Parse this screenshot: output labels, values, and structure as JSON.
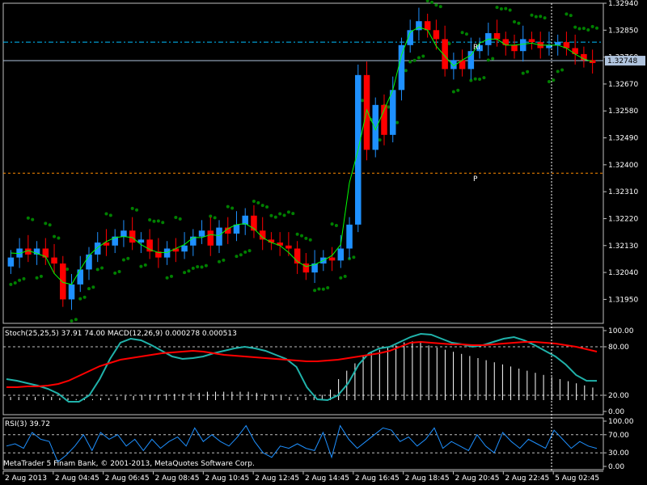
{
  "colors": {
    "background": "#000000",
    "frame": "#c0c0c0",
    "text": "#ffffff",
    "bull_candle": "#1e90ff",
    "bear_candle": "#ff0000",
    "ma_line": "#00ff00",
    "psar": "#008000",
    "stoch_main": "#20b2aa",
    "stoch_signal": "#ff0000",
    "macd_hist": "#ffffff",
    "macd_signal": "#ff0000",
    "rsi": "#1e90ff",
    "pivot": "#ff8c00",
    "rl": "#00bfff",
    "price_line": "#b0c4de",
    "vline": "#ffffff"
  },
  "chart_data": [
    {
      "type": "candlestick",
      "ylim": [
        1.3187,
        1.3294
      ],
      "y_ticks": [
        "1.32940",
        "1.32850",
        "1.32760",
        "1.32670",
        "1.32580",
        "1.32490",
        "1.32400",
        "1.32310",
        "1.32220",
        "1.32130",
        "1.32040",
        "1.31950"
      ],
      "current_price": "1.32748",
      "levels": [
        {
          "label": "Rl",
          "value": 1.3281
        },
        {
          "label": "",
          "value": 1.32748
        },
        {
          "label": "P",
          "value": 1.32372
        }
      ],
      "annotations": [
        "Rl",
        "P"
      ],
      "candles_close": [
        1.3209,
        1.3212,
        1.321,
        1.3212,
        1.3209,
        1.3207,
        1.3195,
        1.32,
        1.3205,
        1.321,
        1.3214,
        1.3213,
        1.3216,
        1.3218,
        1.3214,
        1.3215,
        1.3211,
        1.3209,
        1.3212,
        1.3211,
        1.3213,
        1.3216,
        1.3218,
        1.3213,
        1.3219,
        1.3217,
        1.322,
        1.3223,
        1.3218,
        1.3215,
        1.3214,
        1.3213,
        1.3212,
        1.3207,
        1.3204,
        1.3207,
        1.3209,
        1.3208,
        1.3212,
        1.322,
        1.327,
        1.3245,
        1.326,
        1.325,
        1.3265,
        1.328,
        1.3285,
        1.3288,
        1.3285,
        1.3282,
        1.3272,
        1.3275,
        1.3272,
        1.3278,
        1.328,
        1.3284,
        1.3282,
        1.328,
        1.3278,
        1.3282,
        1.3281,
        1.3279,
        1.328,
        1.3281,
        1.3279,
        1.3277,
        1.3275,
        1.3274
      ],
      "psar_lower_fraction": 0.16,
      "psar_upper_fraction": 0.98
    },
    {
      "type": "line",
      "title": "Stoch(25,25,5) 37.91 74.00 MACD(12,26,9) 0.000278 0.000513",
      "ylim": [
        0,
        100
      ],
      "y_ticks": [
        "100.00",
        "80.00",
        "20.00",
        "0.00"
      ],
      "series": [
        {
          "name": "Stoch main",
          "values": [
            40,
            38,
            35,
            32,
            28,
            22,
            12,
            12,
            20,
            40,
            65,
            85,
            90,
            88,
            82,
            75,
            68,
            65,
            66,
            68,
            72,
            75,
            78,
            80,
            78,
            75,
            70,
            65,
            55,
            30,
            15,
            14,
            20,
            35,
            58,
            72,
            78,
            80,
            86,
            92,
            96,
            95,
            90,
            85,
            83,
            80,
            82,
            86,
            90,
            92,
            88,
            82,
            75,
            68,
            58,
            45,
            38,
            37.91
          ]
        },
        {
          "name": "Stoch signal",
          "values": [
            30,
            30,
            31,
            31,
            32,
            34,
            38,
            44,
            50,
            56,
            60,
            64,
            66,
            68,
            70,
            72,
            73,
            74,
            75,
            74,
            72,
            70,
            69,
            68,
            67,
            66,
            65,
            64,
            63,
            62,
            62,
            63,
            64,
            66,
            68,
            70,
            72,
            75,
            80,
            85,
            86,
            85,
            84,
            83,
            83,
            82,
            82,
            83,
            84,
            85,
            86,
            86,
            85,
            84,
            82,
            80,
            77,
            74.0
          ]
        }
      ],
      "macd_hist": [
        3,
        3,
        3,
        3,
        3,
        3,
        2,
        2,
        1,
        1,
        1,
        2,
        2,
        3,
        4,
        4,
        5,
        5,
        5,
        6,
        6,
        6,
        7,
        7,
        8,
        8,
        8,
        8,
        8,
        8,
        7,
        6,
        5,
        4,
        3,
        3,
        3,
        3,
        5,
        10,
        20,
        28,
        35,
        42,
        45,
        48,
        50,
        52,
        55,
        56,
        55,
        52,
        50,
        48,
        46,
        44,
        42,
        40,
        38,
        36,
        34,
        32,
        30,
        28,
        26,
        24,
        22,
        20,
        18,
        16,
        14,
        12
      ]
    },
    {
      "type": "line",
      "title": "RSI(3) 39.72",
      "ylim": [
        0,
        100
      ],
      "y_ticks": [
        "100.00",
        "70.00",
        "30.00",
        "0.00"
      ],
      "series": [
        {
          "name": "RSI",
          "values": [
            45,
            50,
            40,
            75,
            60,
            55,
            10,
            25,
            45,
            70,
            35,
            75,
            60,
            70,
            45,
            60,
            35,
            60,
            40,
            55,
            65,
            45,
            85,
            55,
            70,
            55,
            45,
            65,
            90,
            55,
            30,
            20,
            45,
            40,
            50,
            40,
            35,
            75,
            20,
            90,
            60,
            40,
            55,
            70,
            85,
            80,
            55,
            65,
            45,
            60,
            85,
            40,
            55,
            45,
            35,
            70,
            45,
            30,
            75,
            55,
            40,
            60,
            50,
            40,
            80,
            60,
            40,
            55,
            45,
            39.72
          ]
        }
      ]
    }
  ],
  "x_axis": {
    "labels": [
      "2 Aug 2013",
      "2 Aug 04:45",
      "2 Aug 06:45",
      "2 Aug 08:45",
      "2 Aug 10:45",
      "2 Aug 12:45",
      "2 Aug 14:45",
      "2 Aug 16:45",
      "2 Aug 18:45",
      "2 Aug 20:45",
      "2 Aug 22:45",
      "5 Aug 02:45"
    ]
  },
  "copyright": "MetaTrader 5 Finam Bank, © 2001-2013, MetaQuotes Software Corp."
}
